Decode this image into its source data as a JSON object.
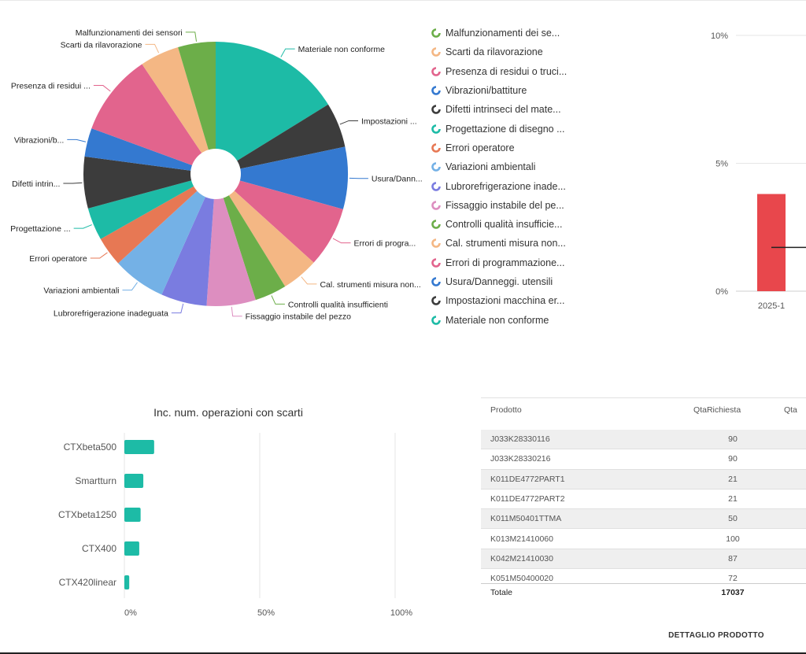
{
  "chart_data": [
    {
      "type": "pie",
      "slices": [
        {
          "label": "Materiale non conforme",
          "legend": "Materiale non conforme",
          "value": 16.2,
          "color": "#1dbba6"
        },
        {
          "label": "Impostazioni ...",
          "legend": "Impostazioni macchina er...",
          "value": 5.5,
          "color": "#3c3c3c"
        },
        {
          "label": "Usura/Dann...",
          "legend": "Usura/Danneggi. utensili",
          "value": 7.6,
          "color": "#3479d0"
        },
        {
          "label": "Errori di progra...",
          "legend": "Errori di programmazione...",
          "value": 7.4,
          "color": "#e2648d"
        },
        {
          "label": "Cal. strumenti misura non...",
          "legend": "Cal. strumenti misura non...",
          "value": 4.5,
          "color": "#f4b784"
        },
        {
          "label": "Controlli qualità insufficienti",
          "legend": "Controlli qualità insufficie...",
          "value": 3.9,
          "color": "#6cae49"
        },
        {
          "label": "Fissaggio instabile del pezzo",
          "legend": "Fissaggio instabile del pe...",
          "value": 6.0,
          "color": "#dd8ec0"
        },
        {
          "label": "Lubrorefrigerazione inadeguata",
          "legend": "Lubrorefrigerazione inade...",
          "value": 5.6,
          "color": "#7a7ce0"
        },
        {
          "label": "Variazioni ambientali",
          "legend": "Variazioni ambientali",
          "value": 6.5,
          "color": "#74b1e6"
        },
        {
          "label": "Errori operatore",
          "legend": "Errori operatore",
          "value": 3.6,
          "color": "#e77854"
        },
        {
          "label": "Progettazione ...",
          "legend": "Progettazione di disegno ...",
          "value": 4.0,
          "color": "#1dbba6"
        },
        {
          "label": "Difetti intrin...",
          "legend": "Difetti intrinseci del mate...",
          "value": 6.3,
          "color": "#3c3c3c"
        },
        {
          "label": "Vibrazioni/b...",
          "legend": "Vibrazioni/battiture",
          "value": 3.5,
          "color": "#3479d0"
        },
        {
          "label": "Presenza di residui ...",
          "legend": "Presenza di residui o truci...",
          "value": 10.0,
          "color": "#e2648d"
        },
        {
          "label": "Scarti da rilavorazione",
          "legend": "Scarti da rilavorazione",
          "value": 4.8,
          "color": "#f4b784"
        },
        {
          "label": "Malfunzionamenti dei sensori",
          "legend": "Malfunzionamenti dei se...",
          "value": 4.6,
          "color": "#6cae49"
        }
      ]
    },
    {
      "type": "bar",
      "categories": [
        "2025-1"
      ],
      "values": [
        3.8
      ],
      "yticks": [
        "0%",
        "5%",
        "10%"
      ],
      "ylim": [
        0,
        10
      ],
      "grid": true,
      "bar_color": "#e8474c",
      "line_color": "#222222"
    },
    {
      "type": "bar",
      "orientation": "horizontal",
      "title": "Inc. num. operazioni con scarti",
      "categories": [
        "CTXbeta500",
        "Smartturn",
        "CTXbeta1250",
        "CTX400",
        "CTX420linear"
      ],
      "values": [
        11,
        7,
        6,
        5.5,
        1.8
      ],
      "xticks": [
        "0%",
        "50%",
        "100%"
      ],
      "xlim": [
        0,
        100
      ],
      "grid": true,
      "bar_color": "#1dbba6"
    }
  ],
  "table": {
    "headers": {
      "prodotto": "Prodotto",
      "qta": "QtaRichiesta",
      "qta2": "Qta"
    },
    "rows": [
      {
        "prodotto": "J033K28330116",
        "qta": "90"
      },
      {
        "prodotto": "J033K28330216",
        "qta": "90"
      },
      {
        "prodotto": "K011DE4772PART1",
        "qta": "21"
      },
      {
        "prodotto": "K011DE4772PART2",
        "qta": "21"
      },
      {
        "prodotto": "K011M50401TTMA",
        "qta": "50"
      },
      {
        "prodotto": "K013M21410060",
        "qta": "100"
      },
      {
        "prodotto": "K042M21410030",
        "qta": "87"
      },
      {
        "prodotto": "K051M50400020",
        "qta": "72"
      }
    ],
    "footer": {
      "label": "Totale",
      "qta": "17037"
    }
  },
  "detail_button": "DETTAGLIO PRODOTTO"
}
